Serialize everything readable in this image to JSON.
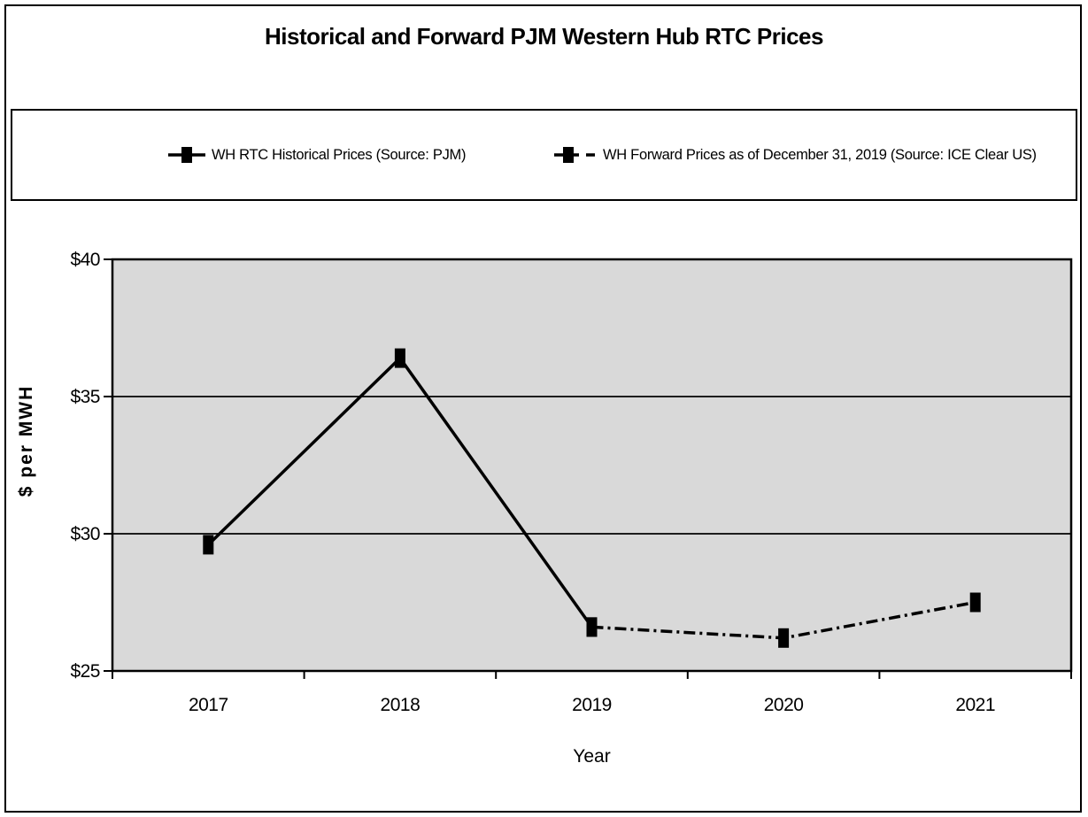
{
  "chart_data": {
    "type": "line",
    "title": "Historical and Forward PJM Western Hub RTC Prices",
    "categories": [
      "2017",
      "2018",
      "2019",
      "2020",
      "2021"
    ],
    "series": [
      {
        "name": "WH RTC Historical Prices (Source: PJM)",
        "x": [
          "2017",
          "2018",
          "2019"
        ],
        "values": [
          29.6,
          36.4,
          26.6
        ],
        "line_style": "solid",
        "marker": "square",
        "color": "#000000"
      },
      {
        "name": "WH Forward Prices as of December 31, 2019 (Source: ICE Clear US)",
        "x": [
          "2019",
          "2020",
          "2021"
        ],
        "values": [
          26.6,
          26.2,
          27.5
        ],
        "line_style": "dash-dot",
        "marker": "square",
        "color": "#000000"
      }
    ],
    "xlabel": "Year",
    "ylabel": "$ per MWH",
    "ylim": [
      25,
      40
    ],
    "yticks": [
      {
        "value": 25,
        "label": "$25"
      },
      {
        "value": 30,
        "label": "$30"
      },
      {
        "value": 35,
        "label": "$35"
      },
      {
        "value": 40,
        "label": "$40"
      }
    ],
    "grid": "horizontal-only",
    "legend_position": "top",
    "colors": {
      "plot_background": "#d9d9d9",
      "chart_background": "#ffffff",
      "line": "#000000",
      "axis": "#000000",
      "border": "#000000"
    }
  }
}
